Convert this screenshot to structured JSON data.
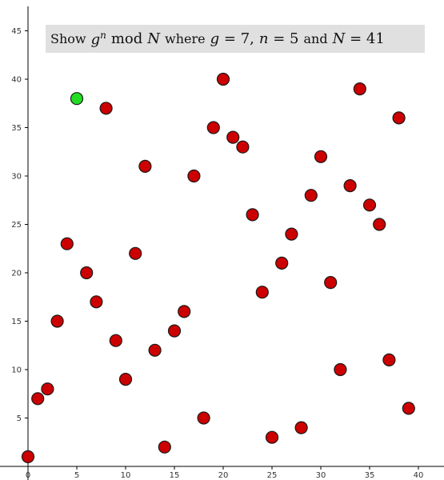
{
  "title": {
    "show": "Show",
    "g": "g",
    "n_sup": "n",
    "mod": "mod",
    "N": "N",
    "where": "where",
    "g_expr_var": "g",
    "g_expr_rest": "= 7",
    "comma": ",",
    "n_expr_var": "n",
    "n_expr_rest": "= 5",
    "and": "and",
    "N_expr_var": "N",
    "N_expr_rest": "= 41"
  },
  "colors": {
    "point_fill": "#cc0000",
    "highlight_fill": "#22dd22",
    "point_stroke": "#1a1a1a",
    "title_bg": "#e0e0e0"
  },
  "chart_data": {
    "type": "scatter",
    "title": "Show g^n mod N where g = 7, n = 5 and N = 41",
    "xlim": [
      0,
      42
    ],
    "ylim": [
      0,
      47
    ],
    "xticks": [
      0,
      5,
      10,
      15,
      20,
      25,
      30,
      35,
      40
    ],
    "yticks": [
      5,
      10,
      15,
      20,
      25,
      30,
      35,
      40,
      45
    ],
    "grid": false,
    "series": [
      {
        "points": [
          [
            0,
            1
          ],
          [
            1,
            7
          ],
          [
            2,
            8
          ],
          [
            3,
            15
          ],
          [
            4,
            23
          ],
          [
            6,
            20
          ],
          [
            7,
            17
          ],
          [
            8,
            37
          ],
          [
            9,
            13
          ],
          [
            10,
            9
          ],
          [
            11,
            22
          ],
          [
            12,
            31
          ],
          [
            13,
            12
          ],
          [
            14,
            2
          ],
          [
            15,
            14
          ],
          [
            16,
            16
          ],
          [
            17,
            30
          ],
          [
            18,
            5
          ],
          [
            19,
            35
          ],
          [
            20,
            40
          ],
          [
            21,
            34
          ],
          [
            22,
            33
          ],
          [
            23,
            26
          ],
          [
            24,
            18
          ],
          [
            25,
            3
          ],
          [
            26,
            21
          ],
          [
            27,
            24
          ],
          [
            28,
            4
          ],
          [
            29,
            28
          ],
          [
            30,
            32
          ],
          [
            31,
            19
          ],
          [
            32,
            10
          ],
          [
            33,
            29
          ],
          [
            34,
            39
          ],
          [
            35,
            27
          ],
          [
            36,
            25
          ],
          [
            37,
            11
          ],
          [
            38,
            36
          ],
          [
            39,
            6
          ]
        ]
      },
      {
        "highlight": true,
        "points": [
          [
            5,
            38
          ]
        ]
      }
    ]
  }
}
